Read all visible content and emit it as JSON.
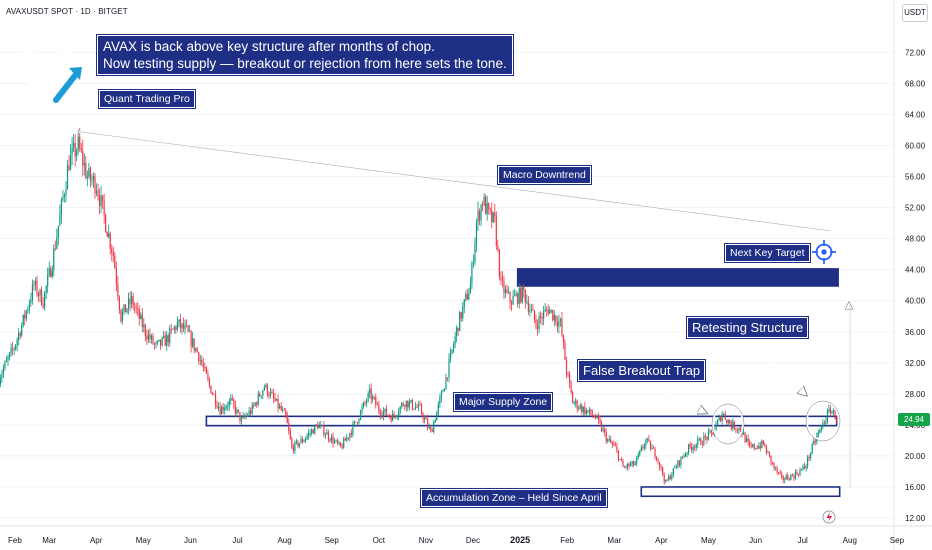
{
  "chart_data": {
    "type": "candlestick",
    "symbol": "AVAXUSDT SPOT · 1D · BITGET",
    "currency": "USDT",
    "last_price": "24.94",
    "price_axis": {
      "ylim": [
        11,
        78
      ],
      "ticks": [
        "72.00",
        "68.00",
        "64.00",
        "60.00",
        "56.00",
        "52.00",
        "48.00",
        "44.00",
        "40.00",
        "36.00",
        "32.00",
        "28.00",
        "24.00",
        "20.00",
        "16.00",
        "12.00"
      ],
      "values": [
        72,
        68,
        64,
        60,
        56,
        52,
        48,
        44,
        40,
        36,
        32,
        28,
        24,
        20,
        16,
        12
      ]
    },
    "time_axis": {
      "labels": [
        "Feb",
        "Mar",
        "Apr",
        "May",
        "Jun",
        "Jul",
        "Aug",
        "Sep",
        "Oct",
        "Nov",
        "Dec",
        "2025",
        "Feb",
        "Mar",
        "Apr",
        "May",
        "Jun",
        "Jul",
        "Aug",
        "Sep"
      ],
      "bold": [
        "2025"
      ]
    },
    "price_path": [
      [
        "2024-01-26",
        30
      ],
      [
        "2024-02-05",
        34
      ],
      [
        "2024-02-12",
        38
      ],
      [
        "2024-02-18",
        42
      ],
      [
        "2024-02-24",
        40
      ],
      [
        "2024-03-01",
        45
      ],
      [
        "2024-03-07",
        52
      ],
      [
        "2024-03-12",
        58
      ],
      [
        "2024-03-18",
        60
      ],
      [
        "2024-03-24",
        56
      ],
      [
        "2024-03-30",
        55
      ],
      [
        "2024-04-05",
        50
      ],
      [
        "2024-04-10",
        46
      ],
      [
        "2024-04-15",
        38
      ],
      [
        "2024-04-22",
        40
      ],
      [
        "2024-05-01",
        36
      ],
      [
        "2024-05-08",
        34
      ],
      [
        "2024-05-15",
        35
      ],
      [
        "2024-05-22",
        37
      ],
      [
        "2024-05-28",
        36
      ],
      [
        "2024-06-05",
        33
      ],
      [
        "2024-06-12",
        29
      ],
      [
        "2024-06-19",
        26
      ],
      [
        "2024-06-26",
        27
      ],
      [
        "2024-07-03",
        24.5
      ],
      [
        "2024-07-10",
        26
      ],
      [
        "2024-07-18",
        29
      ],
      [
        "2024-07-25",
        27
      ],
      [
        "2024-08-01",
        25
      ],
      [
        "2024-08-05",
        21
      ],
      [
        "2024-08-12",
        22
      ],
      [
        "2024-08-22",
        24
      ],
      [
        "2024-09-01",
        22
      ],
      [
        "2024-09-06",
        21
      ],
      [
        "2024-09-15",
        24
      ],
      [
        "2024-09-25",
        28
      ],
      [
        "2024-10-01",
        26
      ],
      [
        "2024-10-10",
        25
      ],
      [
        "2024-10-18",
        27
      ],
      [
        "2024-10-28",
        26
      ],
      [
        "2024-11-04",
        23
      ],
      [
        "2024-11-10",
        27
      ],
      [
        "2024-11-14",
        30
      ],
      [
        "2024-11-22",
        37
      ],
      [
        "2024-11-30",
        42
      ],
      [
        "2024-12-04",
        50
      ],
      [
        "2024-12-08",
        53
      ],
      [
        "2024-12-12",
        51
      ],
      [
        "2024-12-16",
        50
      ],
      [
        "2024-12-20",
        42
      ],
      [
        "2024-12-26",
        40
      ],
      [
        "2025-01-04",
        41
      ],
      [
        "2025-01-12",
        37
      ],
      [
        "2025-01-20",
        39
      ],
      [
        "2025-01-28",
        37
      ],
      [
        "2025-02-01",
        31
      ],
      [
        "2025-02-05",
        27
      ],
      [
        "2025-02-12",
        26
      ],
      [
        "2025-02-20",
        25
      ],
      [
        "2025-02-28",
        22
      ],
      [
        "2025-03-05",
        21
      ],
      [
        "2025-03-10",
        18.5
      ],
      [
        "2025-03-18",
        19
      ],
      [
        "2025-03-25",
        22
      ],
      [
        "2025-04-01",
        20
      ],
      [
        "2025-04-07",
        16.5
      ],
      [
        "2025-04-15",
        19
      ],
      [
        "2025-04-22",
        21
      ],
      [
        "2025-05-01",
        22
      ],
      [
        "2025-05-08",
        23
      ],
      [
        "2025-05-14",
        25.5
      ],
      [
        "2025-05-20",
        24
      ],
      [
        "2025-05-26",
        23.5
      ],
      [
        "2025-06-01",
        21
      ],
      [
        "2025-06-10",
        21.5
      ],
      [
        "2025-06-17",
        18.5
      ],
      [
        "2025-06-22",
        17
      ],
      [
        "2025-06-30",
        17.5
      ],
      [
        "2025-07-07",
        18.5
      ],
      [
        "2025-07-14",
        22
      ],
      [
        "2025-07-20",
        24.5
      ],
      [
        "2025-07-24",
        26
      ],
      [
        "2025-07-28",
        24.94
      ]
    ],
    "zones": [
      {
        "name": "Major Supply Zone",
        "low": 23.9,
        "high": 25.1,
        "from": "2024-06-10",
        "to": "2025-07-28"
      },
      {
        "name": "Accumulation Zone – Held Since April",
        "low": 14.8,
        "high": 16.0,
        "from": "2025-03-22",
        "to": "2025-07-30"
      },
      {
        "name": "Next Key Target",
        "low": 41.7,
        "high": 44.3,
        "from": "2024-12-30",
        "to": "2025-07-30"
      }
    ],
    "trendline": {
      "name": "Macro Downtrend",
      "from": [
        "2024-03-18",
        61.8
      ],
      "to": [
        "2025-07-24",
        49
      ]
    }
  },
  "annotations": {
    "headline_line1": "AVAX is back above key structure after months of chop.",
    "headline_line2": "Now testing supply — breakout or rejection from here sets the tone.",
    "brand": "Quant Trading Pro",
    "macro_downtrend": "Macro Downtrend",
    "next_key_target": "Next Key Target",
    "retesting_structure": "Retesting Structure",
    "false_breakout": "False Breakout Trap",
    "major_supply": "Major Supply Zone",
    "accumulation": "Accumulation Zone – Held Since April"
  },
  "colors": {
    "up": "#089981",
    "down": "#f23645",
    "callout_bg": "#1f2f86",
    "accent_blue": "#2962ff",
    "last_price_bg": "#16a34a"
  }
}
